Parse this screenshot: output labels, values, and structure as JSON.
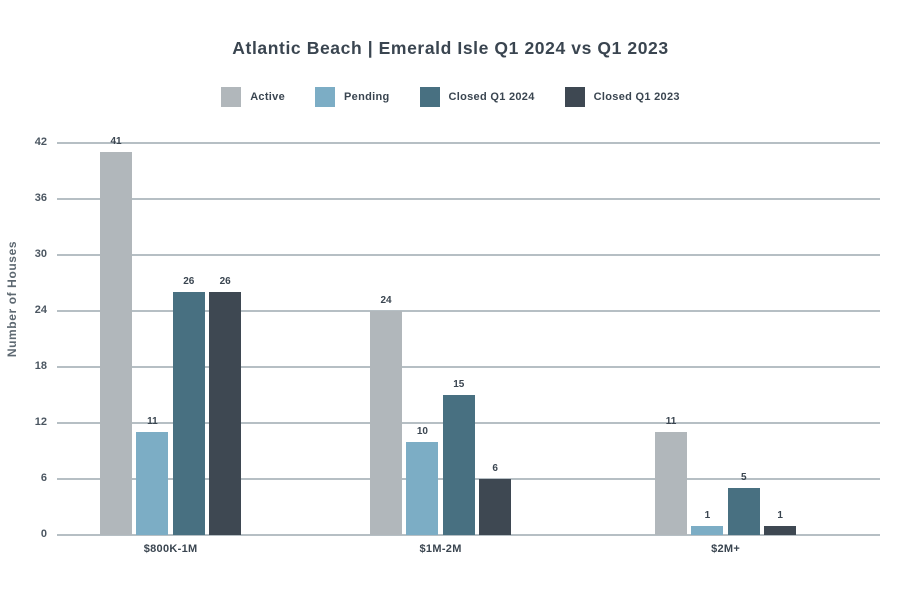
{
  "chart_data": {
    "type": "bar",
    "title": "Atlantic Beach | Emerald Isle Q1 2024 vs Q1 2023",
    "ylabel": "Number of Houses",
    "xlabel": "",
    "categories": [
      "$800K-1M",
      "$1M-2M",
      "$2M+"
    ],
    "series": [
      {
        "name": "Active",
        "color": "#b1b7bb",
        "values": [
          41,
          24,
          11
        ]
      },
      {
        "name": "Pending",
        "color": "#7cadc5",
        "values": [
          11,
          10,
          1
        ]
      },
      {
        "name": "Closed Q1 2024",
        "color": "#487081",
        "values": [
          26,
          15,
          5
        ]
      },
      {
        "name": "Closed Q1 2023",
        "color": "#3e4852",
        "values": [
          26,
          6,
          1
        ]
      }
    ],
    "ylim": [
      0,
      42
    ],
    "ytick_step": 6,
    "yticks": [
      0,
      6,
      12,
      18,
      24,
      30,
      36,
      42
    ],
    "grid": "horizontal",
    "legend_position": "top",
    "value_labels": true
  },
  "colors": {
    "background": "#ffffff",
    "gridline": "#b6bfc4",
    "title_text": "#3a4550",
    "tick_text": "#4b5661",
    "axis_label_text": "#5d6871"
  }
}
